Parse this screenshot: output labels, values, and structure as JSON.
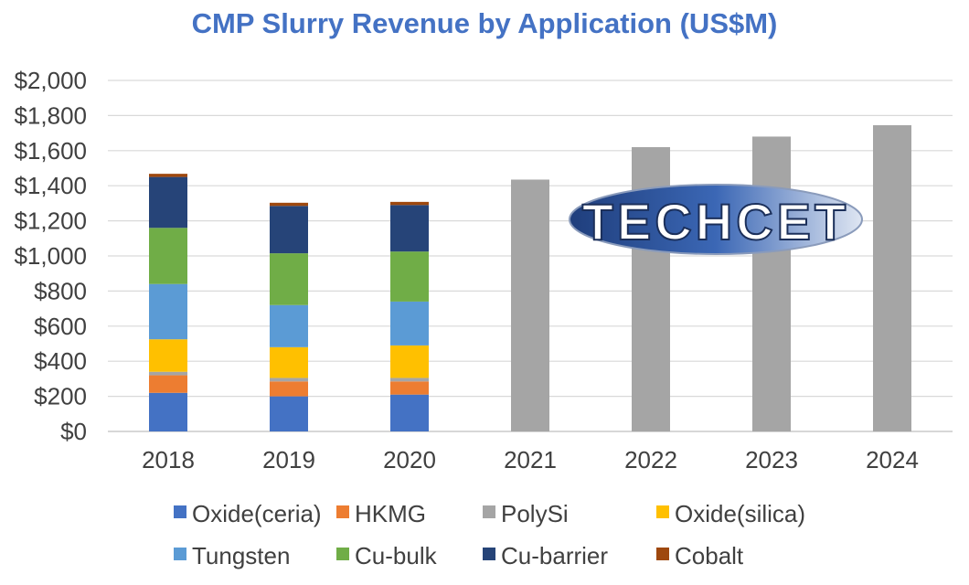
{
  "chart_data": {
    "type": "bar",
    "stacked": true,
    "title": "CMP Slurry Revenue by Application (US$M)",
    "xlabel": "",
    "ylabel": "",
    "ylim": [
      0,
      2000
    ],
    "yticks": [
      0,
      200,
      400,
      600,
      800,
      1000,
      1200,
      1400,
      1600,
      1800,
      2000
    ],
    "ytick_labels": [
      "$0",
      "$200",
      "$400",
      "$600",
      "$800",
      "$1,000",
      "$1,200",
      "$1,400",
      "$1,600",
      "$1,800",
      "$2,000"
    ],
    "categories": [
      "2018",
      "2019",
      "2020",
      "2021",
      "2022",
      "2023",
      "2024"
    ],
    "grid": true,
    "legend_position": "bottom",
    "series": [
      {
        "name": "Oxide(ceria)",
        "color": "#4472C4",
        "values": [
          220,
          200,
          210,
          null,
          null,
          null,
          null
        ]
      },
      {
        "name": "HKMG",
        "color": "#ED7D31",
        "values": [
          100,
          85,
          75,
          null,
          null,
          null,
          null
        ]
      },
      {
        "name": "PolySi",
        "color": "#A5A5A5",
        "values": [
          20,
          20,
          20,
          null,
          null,
          null,
          null
        ]
      },
      {
        "name": "Oxide(silica)",
        "color": "#FFC000",
        "values": [
          185,
          175,
          185,
          null,
          null,
          null,
          null
        ]
      },
      {
        "name": "Tungsten",
        "color": "#5B9BD5",
        "values": [
          315,
          240,
          250,
          null,
          null,
          null,
          null
        ]
      },
      {
        "name": "Cu-bulk",
        "color": "#70AD47",
        "values": [
          320,
          295,
          285,
          null,
          null,
          null,
          null
        ]
      },
      {
        "name": "Cu-barrier",
        "color": "#264478",
        "values": [
          290,
          270,
          265,
          null,
          null,
          null,
          null
        ]
      },
      {
        "name": "Cobalt",
        "color": "#9E480E",
        "values": [
          18,
          18,
          18,
          null,
          null,
          null,
          null
        ]
      }
    ],
    "totals_only": {
      "color": "#A5A5A5",
      "values": [
        null,
        null,
        null,
        1435,
        1620,
        1680,
        1745
      ]
    }
  },
  "watermark": {
    "text": "TECHCET"
  }
}
